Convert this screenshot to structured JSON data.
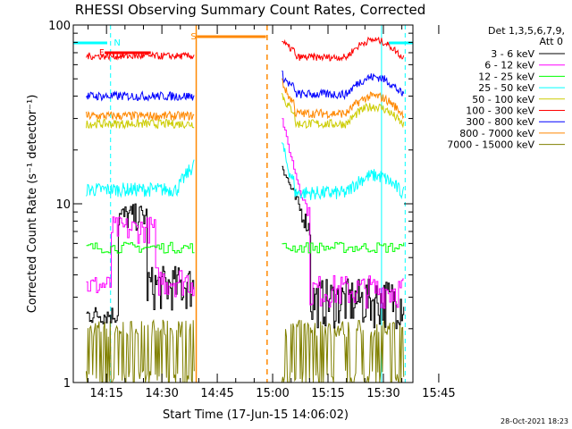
{
  "chart_data": {
    "type": "line",
    "title": "RHESSI Observing Summary Count Rates, Corrected",
    "xlabel": "Start Time (17-Jun-15 14:06:02)",
    "ylabel": "Corrected Count Rate (s⁻¹ detector⁻¹)",
    "yscale": "log",
    "ylim": [
      1,
      100
    ],
    "y_ticks": [
      {
        "value": 1,
        "label": "1"
      },
      {
        "value": 10,
        "label": "10"
      },
      {
        "value": 100,
        "label": "100"
      }
    ],
    "xlim_min": [
      6.0,
      98.0
    ],
    "x_ticks": [
      {
        "value": 15,
        "label": "14:15"
      },
      {
        "value": 30,
        "label": "14:30"
      },
      {
        "value": 45,
        "label": "14:45"
      },
      {
        "value": 60,
        "label": "15:00"
      },
      {
        "value": 75,
        "label": "15:15"
      },
      {
        "value": 90,
        "label": "15:30"
      },
      {
        "value": 105,
        "label": "15:45"
      }
    ],
    "legend_header": [
      "Det 1,3,5,6,7,9,",
      "Att 0"
    ],
    "legend_position": "top-right",
    "series": [
      {
        "name": "3 - 6 keV",
        "color": "#000000"
      },
      {
        "name": "6 - 12 keV",
        "color": "#ff00ff"
      },
      {
        "name": "12 - 25 keV",
        "color": "#00ff00"
      },
      {
        "name": "25 - 50 keV",
        "color": "#00ffff"
      },
      {
        "name": "50 - 100 keV",
        "color": "#cccc00"
      },
      {
        "name": "100 - 300 keV",
        "color": "#ff0000"
      },
      {
        "name": "300 - 800 keV",
        "color": "#0000ff"
      },
      {
        "name": "800 - 7000 keV",
        "color": "#ff8800"
      },
      {
        "name": "7000 - 15000 keV",
        "color": "#808000"
      }
    ],
    "flags": [
      {
        "label": "N",
        "color": "#00ffff"
      },
      {
        "label": "F",
        "color": "#ff0000"
      },
      {
        "label": "S",
        "color": "#ff8800"
      }
    ],
    "timestamp": "28-Oct-2021 18:23"
  }
}
